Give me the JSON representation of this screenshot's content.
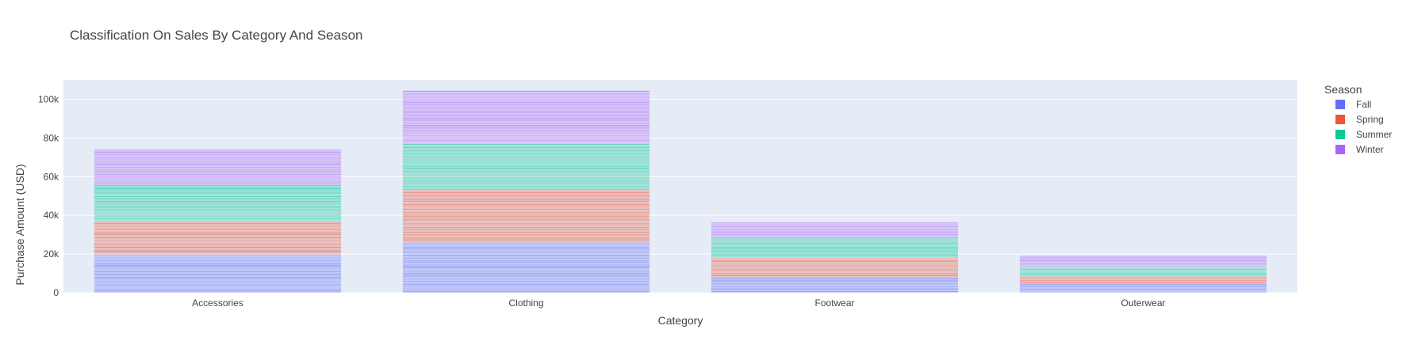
{
  "chart_data": {
    "type": "bar",
    "barmode": "stack",
    "title": "Classification On Sales By Category And Season",
    "xlabel": "Category",
    "ylabel": "Purchase Amount (USD)",
    "categories": [
      "Accessories",
      "Clothing",
      "Footwear",
      "Outerwear"
    ],
    "ylim": [
      0,
      110000
    ],
    "yticks": [
      {
        "value": 0,
        "label": "0"
      },
      {
        "value": 20000,
        "label": "20k"
      },
      {
        "value": 40000,
        "label": "40k"
      },
      {
        "value": 60000,
        "label": "60k"
      },
      {
        "value": 80000,
        "label": "80k"
      },
      {
        "value": 100000,
        "label": "100k"
      }
    ],
    "grid": true,
    "legend_title": "Season",
    "legend_position": "right",
    "series": [
      {
        "name": "Fall",
        "color": "#636efa",
        "values": [
          19800,
          26000,
          8000,
          4500
        ]
      },
      {
        "name": "Spring",
        "color": "#ef553b",
        "values": [
          17000,
          27500,
          10000,
          4000
        ]
      },
      {
        "name": "Summer",
        "color": "#00cc96",
        "values": [
          19000,
          23500,
          10500,
          5000
        ]
      },
      {
        "name": "Winter",
        "color": "#ab63fa",
        "values": [
          18500,
          27500,
          8000,
          5500
        ]
      }
    ],
    "colors": {
      "plot_bg": "#e5ecf6",
      "grid": "#ffffff"
    }
  }
}
